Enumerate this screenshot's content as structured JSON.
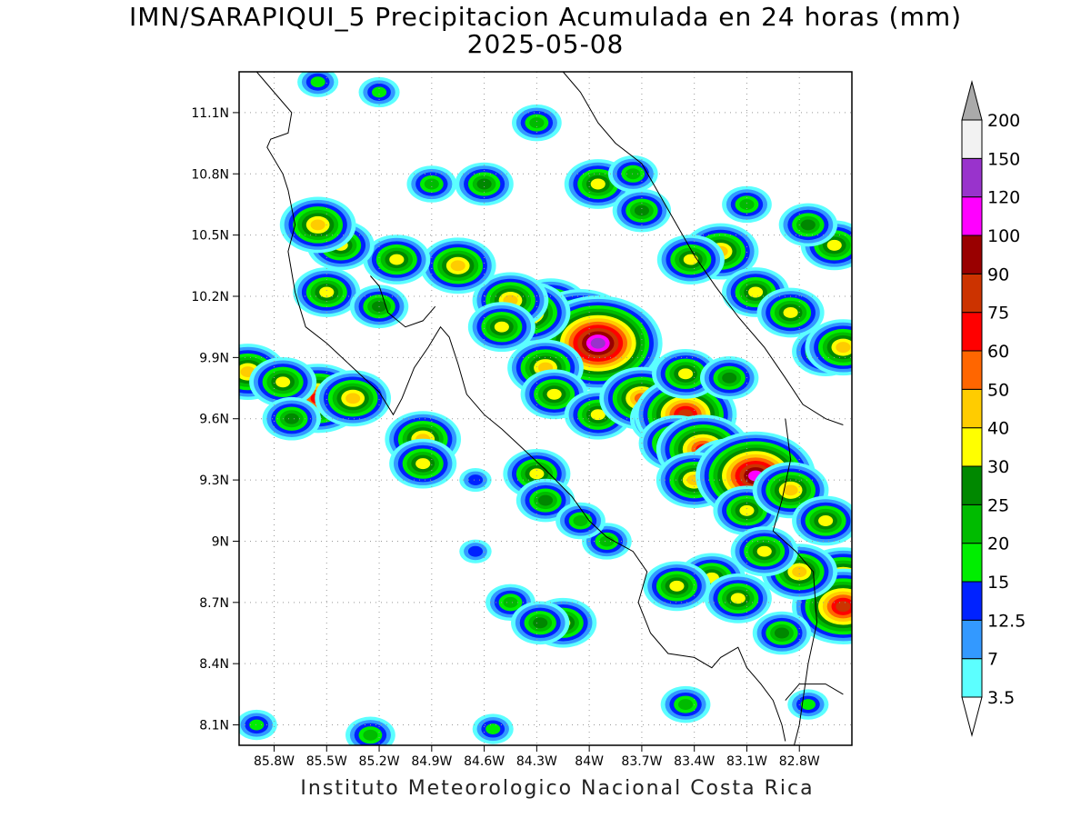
{
  "title": {
    "line1": "IMN/SARAPIQUI_5 Precipitacion Acumulada en 24 horas (mm)",
    "line2": "2025-05-08"
  },
  "footer": "Instituto Meteorologico Nacional Costa Rica",
  "map": {
    "lon_range": [
      -86.0,
      -82.5
    ],
    "lat_range": [
      8.0,
      11.3
    ],
    "x_ticks": [
      {
        "lon": -85.8,
        "label": "85.8W"
      },
      {
        "lon": -85.5,
        "label": "85.5W"
      },
      {
        "lon": -85.2,
        "label": "85.2W"
      },
      {
        "lon": -84.9,
        "label": "84.9W"
      },
      {
        "lon": -84.6,
        "label": "84.6W"
      },
      {
        "lon": -84.3,
        "label": "84.3W"
      },
      {
        "lon": -84.0,
        "label": "84W"
      },
      {
        "lon": -83.7,
        "label": "83.7W"
      },
      {
        "lon": -83.4,
        "label": "83.4W"
      },
      {
        "lon": -83.1,
        "label": "83.1W"
      },
      {
        "lon": -82.8,
        "label": "82.8W"
      }
    ],
    "y_ticks": [
      {
        "lat": 8.1,
        "label": "8.1N"
      },
      {
        "lat": 8.4,
        "label": "8.4N"
      },
      {
        "lat": 8.7,
        "label": "8.7N"
      },
      {
        "lat": 9.0,
        "label": "9N"
      },
      {
        "lat": 9.3,
        "label": "9.3N"
      },
      {
        "lat": 9.6,
        "label": "9.6N"
      },
      {
        "lat": 9.9,
        "label": "9.9N"
      },
      {
        "lat": 10.2,
        "label": "10.2N"
      },
      {
        "lat": 10.5,
        "label": "10.5N"
      },
      {
        "lat": 10.8,
        "label": "10.8N"
      },
      {
        "lat": 11.1,
        "label": "11.1N"
      }
    ],
    "grid": true,
    "coastlines": [
      [
        [
          -85.9,
          11.3
        ],
        [
          -85.8,
          11.2
        ],
        [
          -85.7,
          11.1
        ],
        [
          -85.72,
          11.0
        ],
        [
          -85.82,
          10.97
        ],
        [
          -85.84,
          10.93
        ],
        [
          -85.75,
          10.8
        ],
        [
          -85.72,
          10.72
        ],
        [
          -85.68,
          10.55
        ],
        [
          -85.72,
          10.42
        ],
        [
          -85.68,
          10.22
        ],
        [
          -85.62,
          10.05
        ],
        [
          -85.5,
          9.97
        ],
        [
          -85.35,
          9.85
        ],
        [
          -85.2,
          9.73
        ],
        [
          -85.12,
          9.62
        ],
        [
          -85.07,
          9.7
        ],
        [
          -85.0,
          9.85
        ],
        [
          -84.92,
          9.95
        ],
        [
          -84.85,
          10.05
        ],
        [
          -84.8,
          10.0
        ],
        [
          -84.75,
          9.87
        ],
        [
          -84.7,
          9.72
        ],
        [
          -84.6,
          9.62
        ],
        [
          -84.5,
          9.55
        ],
        [
          -84.4,
          9.47
        ],
        [
          -84.25,
          9.35
        ],
        [
          -84.1,
          9.22
        ],
        [
          -84.0,
          9.1
        ],
        [
          -83.9,
          9.02
        ],
        [
          -83.75,
          8.95
        ],
        [
          -83.67,
          8.85
        ],
        [
          -83.72,
          8.7
        ],
        [
          -83.65,
          8.55
        ],
        [
          -83.55,
          8.45
        ],
        [
          -83.4,
          8.43
        ],
        [
          -83.3,
          8.38
        ],
        [
          -83.25,
          8.43
        ],
        [
          -83.15,
          8.48
        ],
        [
          -83.1,
          8.38
        ],
        [
          -83.02,
          8.3
        ],
        [
          -82.95,
          8.22
        ],
        [
          -82.9,
          8.1
        ],
        [
          -82.88,
          8.02
        ]
      ],
      [
        [
          -84.88,
          10.15
        ],
        [
          -84.95,
          10.08
        ],
        [
          -85.05,
          10.05
        ],
        [
          -85.15,
          10.12
        ],
        [
          -85.2,
          10.25
        ],
        [
          -85.25,
          10.3
        ]
      ],
      [
        [
          -84.15,
          11.3
        ],
        [
          -84.05,
          11.2
        ],
        [
          -83.95,
          11.05
        ],
        [
          -83.85,
          10.95
        ],
        [
          -83.7,
          10.85
        ],
        [
          -83.6,
          10.7
        ],
        [
          -83.5,
          10.55
        ],
        [
          -83.4,
          10.4
        ],
        [
          -83.28,
          10.25
        ],
        [
          -83.15,
          10.1
        ],
        [
          -83.0,
          9.95
        ],
        [
          -82.88,
          9.8
        ],
        [
          -82.78,
          9.67
        ],
        [
          -82.65,
          9.6
        ],
        [
          -82.55,
          9.57
        ]
      ],
      [
        [
          -82.55,
          8.25
        ],
        [
          -82.65,
          8.3
        ],
        [
          -82.8,
          8.3
        ],
        [
          -82.88,
          8.22
        ]
      ],
      [
        [
          -82.88,
          9.6
        ],
        [
          -82.85,
          9.4
        ],
        [
          -82.9,
          9.2
        ],
        [
          -82.95,
          9.05
        ],
        [
          -82.82,
          8.95
        ],
        [
          -82.72,
          8.85
        ],
        [
          -82.7,
          8.6
        ],
        [
          -82.75,
          8.4
        ],
        [
          -82.8,
          8.1
        ],
        [
          -82.83,
          8.0
        ]
      ]
    ],
    "rain_cells": [
      {
        "lon": -84.15,
        "lat": 10.0,
        "v": 60
      },
      {
        "lon": -84.22,
        "lat": 10.15,
        "v": 45
      },
      {
        "lon": -84.05,
        "lat": 10.05,
        "v": 80
      },
      {
        "lon": -83.95,
        "lat": 9.97,
        "v": 120
      },
      {
        "lon": -84.35,
        "lat": 10.12,
        "v": 55
      },
      {
        "lon": -84.45,
        "lat": 10.18,
        "v": 40
      },
      {
        "lon": -84.5,
        "lat": 10.05,
        "v": 35
      },
      {
        "lon": -84.25,
        "lat": 9.85,
        "v": 40
      },
      {
        "lon": -84.2,
        "lat": 9.72,
        "v": 35
      },
      {
        "lon": -83.95,
        "lat": 9.62,
        "v": 30
      },
      {
        "lon": -83.7,
        "lat": 9.7,
        "v": 55
      },
      {
        "lon": -83.55,
        "lat": 9.6,
        "v": 40
      },
      {
        "lon": -83.45,
        "lat": 9.62,
        "v": 80
      },
      {
        "lon": -83.5,
        "lat": 9.48,
        "v": 45
      },
      {
        "lon": -83.35,
        "lat": 9.45,
        "v": 60
      },
      {
        "lon": -83.2,
        "lat": 9.35,
        "v": 55
      },
      {
        "lon": -83.4,
        "lat": 9.3,
        "v": 40
      },
      {
        "lon": -83.05,
        "lat": 9.32,
        "v": 100
      },
      {
        "lon": -83.1,
        "lat": 9.15,
        "v": 35
      },
      {
        "lon": -82.85,
        "lat": 9.25,
        "v": 45
      },
      {
        "lon": -82.65,
        "lat": 9.1,
        "v": 30
      },
      {
        "lon": -82.55,
        "lat": 8.8,
        "v": 60
      },
      {
        "lon": -82.55,
        "lat": 8.68,
        "v": 75
      },
      {
        "lon": -82.8,
        "lat": 8.85,
        "v": 40
      },
      {
        "lon": -83.0,
        "lat": 8.95,
        "v": 35
      },
      {
        "lon": -83.3,
        "lat": 8.82,
        "v": 30
      },
      {
        "lon": -83.5,
        "lat": 8.78,
        "v": 35
      },
      {
        "lon": -83.15,
        "lat": 8.72,
        "v": 30
      },
      {
        "lon": -82.9,
        "lat": 8.55,
        "v": 25
      },
      {
        "lon": -85.55,
        "lat": 9.7,
        "v": 70
      },
      {
        "lon": -85.35,
        "lat": 9.7,
        "v": 40
      },
      {
        "lon": -85.95,
        "lat": 9.83,
        "v": 45
      },
      {
        "lon": -85.75,
        "lat": 9.78,
        "v": 30
      },
      {
        "lon": -85.7,
        "lat": 9.6,
        "v": 25
      },
      {
        "lon": -84.95,
        "lat": 9.5,
        "v": 40
      },
      {
        "lon": -84.95,
        "lat": 9.38,
        "v": 35
      },
      {
        "lon": -84.3,
        "lat": 9.33,
        "v": 35
      },
      {
        "lon": -84.25,
        "lat": 9.2,
        "v": 25
      },
      {
        "lon": -84.45,
        "lat": 8.7,
        "v": 20
      },
      {
        "lon": -84.15,
        "lat": 8.6,
        "v": 30
      },
      {
        "lon": -84.28,
        "lat": 8.6,
        "v": 25
      },
      {
        "lon": -84.75,
        "lat": 10.35,
        "v": 40
      },
      {
        "lon": -85.1,
        "lat": 10.38,
        "v": 30
      },
      {
        "lon": -85.42,
        "lat": 10.45,
        "v": 35
      },
      {
        "lon": -85.55,
        "lat": 10.55,
        "v": 40
      },
      {
        "lon": -85.5,
        "lat": 10.22,
        "v": 30
      },
      {
        "lon": -85.2,
        "lat": 10.15,
        "v": 25
      },
      {
        "lon": -83.25,
        "lat": 10.42,
        "v": 40
      },
      {
        "lon": -83.42,
        "lat": 10.38,
        "v": 35
      },
      {
        "lon": -83.05,
        "lat": 10.22,
        "v": 35
      },
      {
        "lon": -82.85,
        "lat": 10.12,
        "v": 30
      },
      {
        "lon": -82.6,
        "lat": 10.45,
        "v": 30
      },
      {
        "lon": -82.75,
        "lat": 10.55,
        "v": 25
      },
      {
        "lon": -83.95,
        "lat": 10.75,
        "v": 35
      },
      {
        "lon": -83.7,
        "lat": 10.62,
        "v": 25
      },
      {
        "lon": -83.1,
        "lat": 10.65,
        "v": 20
      },
      {
        "lon": -84.6,
        "lat": 10.75,
        "v": 25
      },
      {
        "lon": -84.9,
        "lat": 10.75,
        "v": 20
      },
      {
        "lon": -85.2,
        "lat": 11.2,
        "v": 15
      },
      {
        "lon": -85.55,
        "lat": 11.25,
        "v": 15
      },
      {
        "lon": -84.3,
        "lat": 11.05,
        "v": 20
      },
      {
        "lon": -83.75,
        "lat": 10.8,
        "v": 20
      },
      {
        "lon": -85.25,
        "lat": 8.05,
        "v": 20
      },
      {
        "lon": -84.55,
        "lat": 8.08,
        "v": 15
      },
      {
        "lon": -83.45,
        "lat": 8.2,
        "v": 20
      },
      {
        "lon": -82.75,
        "lat": 8.2,
        "v": 15
      },
      {
        "lon": -83.9,
        "lat": 9.0,
        "v": 20
      },
      {
        "lon": -84.05,
        "lat": 9.1,
        "v": 20
      },
      {
        "lon": -84.65,
        "lat": 9.3,
        "v": 12.5
      },
      {
        "lon": -84.65,
        "lat": 8.95,
        "v": 12.5
      },
      {
        "lon": -85.9,
        "lat": 8.1,
        "v": 15
      },
      {
        "lon": -83.45,
        "lat": 9.82,
        "v": 30
      },
      {
        "lon": -83.2,
        "lat": 9.8,
        "v": 25
      },
      {
        "lon": -82.65,
        "lat": 9.93,
        "v": 35
      },
      {
        "lon": -82.55,
        "lat": 9.95,
        "v": 40
      }
    ]
  },
  "colorbar": {
    "levels": [
      {
        "label": "3.5",
        "color": "#5cffff"
      },
      {
        "label": "7",
        "color": "#3399ff"
      },
      {
        "label": "12.5",
        "color": "#0022ff"
      },
      {
        "label": "15",
        "color": "#00ee00"
      },
      {
        "label": "20",
        "color": "#00bb00"
      },
      {
        "label": "25",
        "color": "#008800"
      },
      {
        "label": "30",
        "color": "#ffff00"
      },
      {
        "label": "40",
        "color": "#ffcc00"
      },
      {
        "label": "50",
        "color": "#ff6600"
      },
      {
        "label": "60",
        "color": "#ff0000"
      },
      {
        "label": "75",
        "color": "#cc3300"
      },
      {
        "label": "90",
        "color": "#990000"
      },
      {
        "label": "100",
        "color": "#ff00ff"
      },
      {
        "label": "120",
        "color": "#9933cc"
      },
      {
        "label": "150",
        "color": "#f2f2f2"
      },
      {
        "label": "200",
        "color": "#aaaaaa"
      }
    ]
  }
}
